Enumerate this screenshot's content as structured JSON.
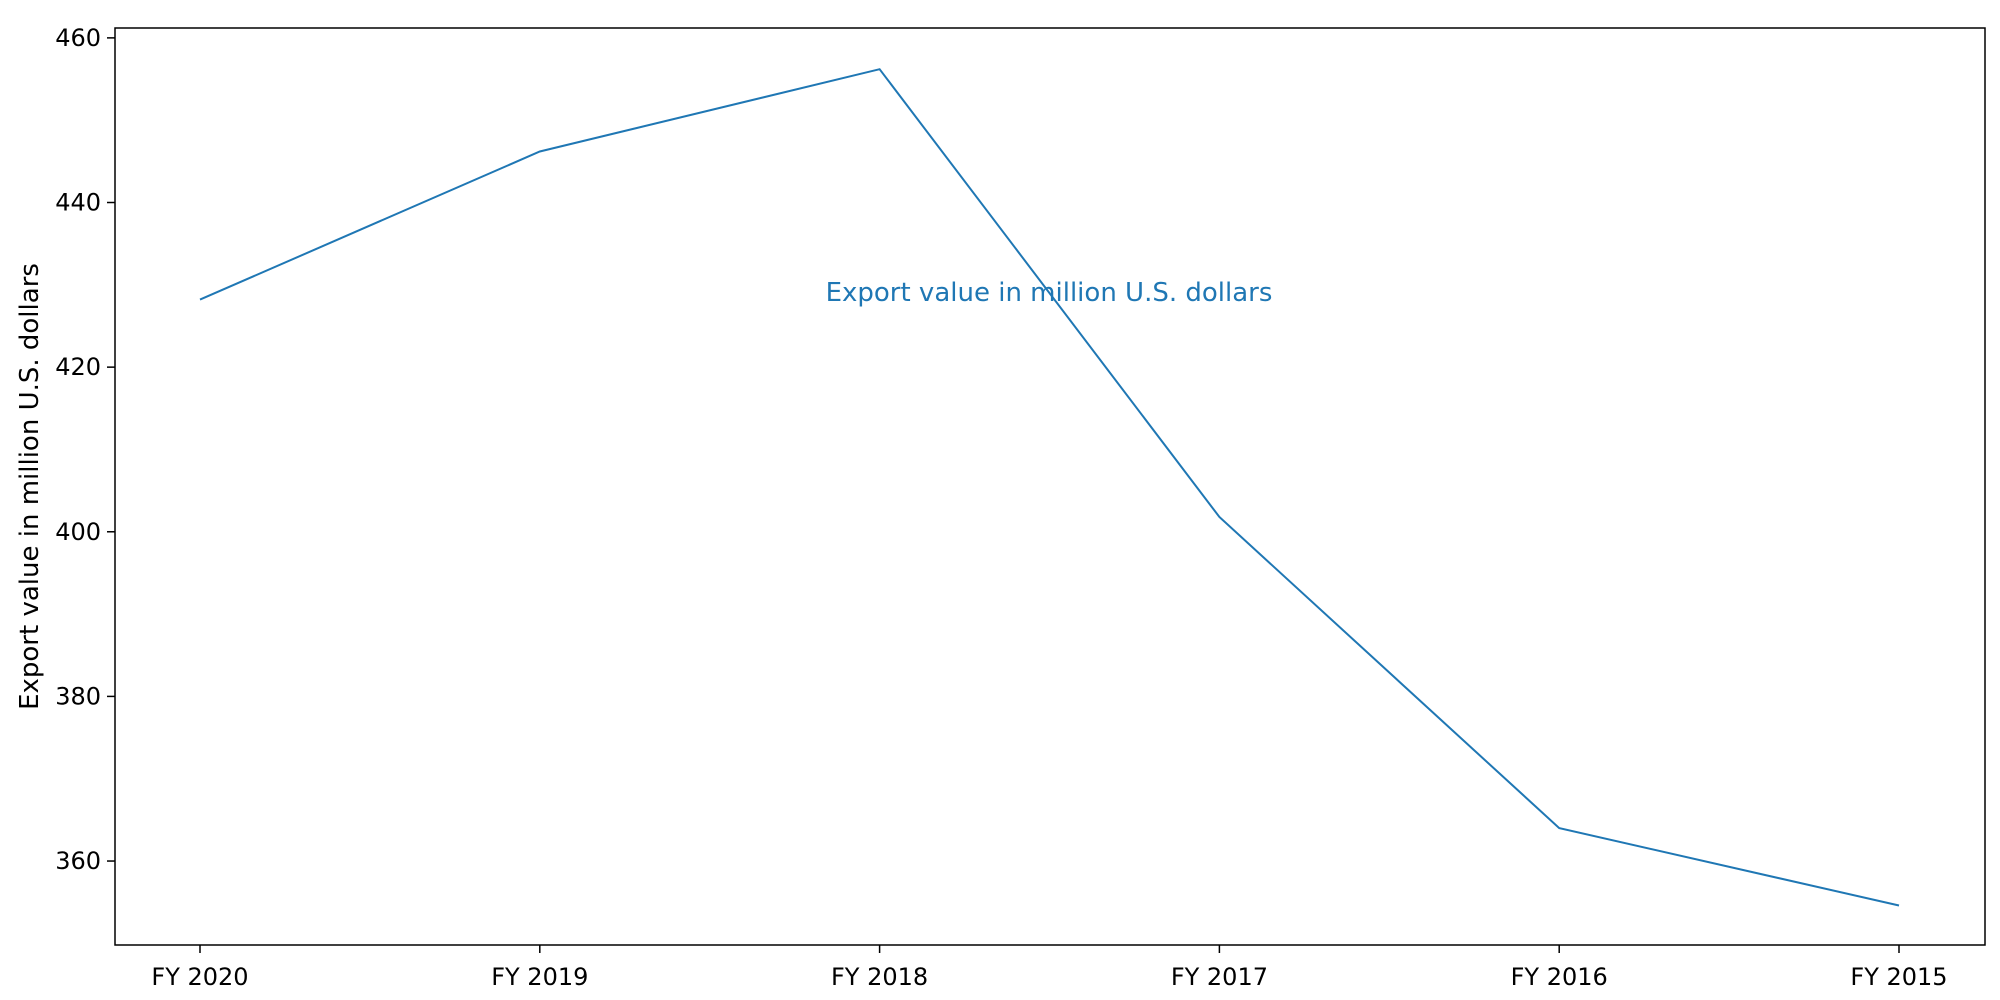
{
  "chart_data": {
    "type": "line",
    "title": "",
    "xlabel": "",
    "ylabel": "Export value in million U.S. dollars",
    "categories": [
      "FY 2020",
      "FY 2019",
      "FY 2018",
      "FY 2017",
      "FY 2016",
      "FY 2015"
    ],
    "series": [
      {
        "name": "Export value in million U.S. dollars",
        "values": [
          428.2,
          446.2,
          456.2,
          401.8,
          364.0,
          354.6
        ]
      }
    ],
    "ylim": [
      349.8,
      461.2
    ],
    "yticks": [
      360,
      380,
      400,
      420,
      440,
      460
    ],
    "grid": false,
    "legend": "none",
    "annotation": "Export value in million U.S. dollars",
    "colors": {
      "series": "#1f77b4",
      "axes": "#000000",
      "background": "#ffffff"
    }
  }
}
